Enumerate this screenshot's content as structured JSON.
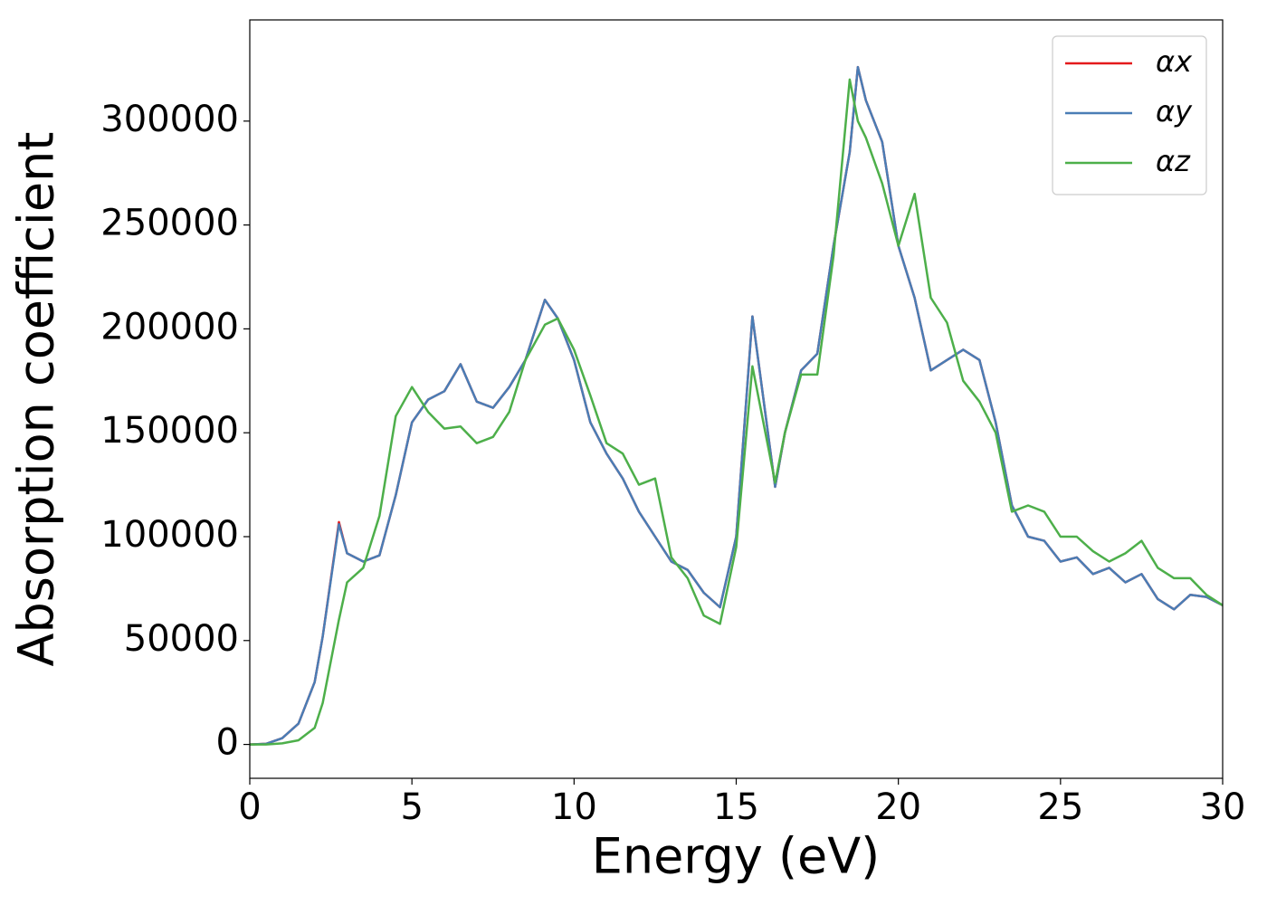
{
  "chart_data": {
    "type": "line",
    "xlabel": "Energy (eV)",
    "ylabel": "Absorption coefficient",
    "x": [
      0,
      0.5,
      1,
      1.5,
      2,
      2.25,
      2.75,
      3,
      3.5,
      4,
      4.5,
      5,
      5.5,
      6,
      6.5,
      7,
      7.5,
      8,
      8.5,
      9.1,
      9.5,
      10,
      10.5,
      11,
      11.5,
      12,
      12.5,
      13,
      13.5,
      14,
      14.5,
      15,
      15.5,
      16.2,
      16.5,
      17,
      17.5,
      18,
      18.5,
      18.75,
      19,
      19.5,
      20,
      20.5,
      21,
      21.5,
      22,
      22.5,
      23,
      23.5,
      24,
      24.5,
      25,
      25.5,
      26,
      26.5,
      27,
      27.5,
      28,
      28.5,
      29,
      29.5,
      30
    ],
    "series": [
      {
        "name": "αx",
        "color": "#e41a1c",
        "values": [
          0,
          300,
          3000,
          10000,
          30000,
          52000,
          107000,
          92000,
          88000,
          91000,
          120000,
          155000,
          166000,
          170000,
          183000,
          165000,
          162000,
          172000,
          185000,
          214000,
          205000,
          185000,
          155000,
          140000,
          128000,
          112000,
          100000,
          88000,
          84000,
          73000,
          66000,
          100000,
          206000,
          124000,
          150000,
          180000,
          188000,
          240000,
          285000,
          326000,
          310000,
          290000,
          240000,
          215000,
          180000,
          185000,
          190000,
          185000,
          155000,
          115000,
          100000,
          98000,
          88000,
          90000,
          82000,
          85000,
          78000,
          82000,
          70000,
          65000,
          72000,
          71000,
          67000
        ]
      },
      {
        "name": "αy",
        "color": "#4a7db5",
        "values": [
          0,
          300,
          3000,
          10000,
          30000,
          52000,
          106000,
          92000,
          88000,
          91000,
          120000,
          155000,
          166000,
          170000,
          183000,
          165000,
          162000,
          172000,
          185000,
          214000,
          205000,
          185000,
          155000,
          140000,
          128000,
          112000,
          100000,
          88000,
          84000,
          73000,
          66000,
          100000,
          206000,
          124000,
          150000,
          180000,
          188000,
          240000,
          285000,
          326000,
          310000,
          290000,
          240000,
          215000,
          180000,
          185000,
          190000,
          185000,
          155000,
          115000,
          100000,
          98000,
          88000,
          90000,
          82000,
          85000,
          78000,
          82000,
          70000,
          65000,
          72000,
          71000,
          67000
        ]
      },
      {
        "name": "αz",
        "color": "#4daf4a",
        "values": [
          0,
          0,
          500,
          2000,
          8000,
          20000,
          60000,
          78000,
          85000,
          110000,
          158000,
          172000,
          160000,
          152000,
          153000,
          145000,
          148000,
          160000,
          185000,
          202000,
          205000,
          190000,
          168000,
          145000,
          140000,
          125000,
          128000,
          90000,
          80000,
          62000,
          58000,
          95000,
          182000,
          126000,
          150000,
          178000,
          178000,
          235000,
          320000,
          300000,
          292000,
          270000,
          240000,
          265000,
          215000,
          203000,
          175000,
          165000,
          150000,
          112000,
          115000,
          112000,
          100000,
          100000,
          93000,
          88000,
          92000,
          98000,
          85000,
          80000,
          80000,
          72000,
          67000
        ]
      }
    ],
    "xlim": [
      0,
      30
    ],
    "xticks": [
      0,
      5,
      10,
      15,
      20,
      25,
      30
    ],
    "ylim": [
      -16300,
      348700
    ],
    "yticks": [
      0,
      50000,
      100000,
      150000,
      200000,
      250000,
      300000
    ],
    "legend": "upper right"
  }
}
